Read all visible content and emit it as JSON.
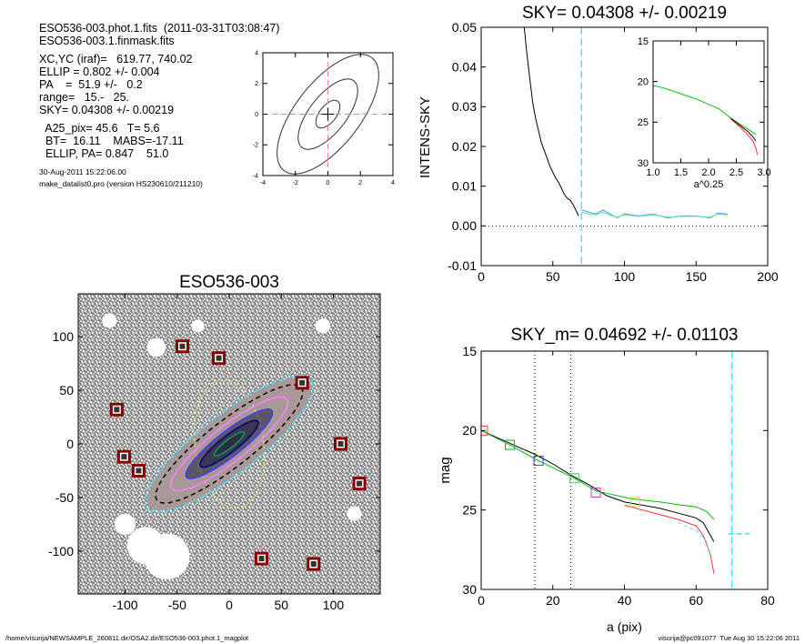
{
  "header": {
    "lines_a": [
      "ESO536-003.phot.1.fits  (2011-03-31T03:08:47)",
      "ESO536-003.1.finmask.fits"
    ],
    "lines_b": [
      "XC,YC (iraf)=   619.77, 740.02",
      "ELLIP = 0.802 +/- 0.004",
      "PA    =  51.9 +/-   0.2",
      "range=   15.-   25.",
      "SKY= 0.04308 +/- 0.00219"
    ],
    "lines_c": [
      "  A25_pix= 45.6   T= 5.6",
      "  BT=  16.11    MABS=-17.11",
      "  ELLIP, PA= 0.847    51.0"
    ],
    "date": "30-Aug-2011 15:22:06.00",
    "program": "make_datalist0.pro (version HS230610/211210)"
  },
  "footer": {
    "path": "/home/visurija/NEWSAMPLE_260811.dir/OSA2.dir/ESO536-003.phot.1_magplot",
    "stamp": "visurija@pc091077  Tue Aug 30 15:22:06 2011"
  },
  "chart_data": [
    {
      "id": "contour",
      "type": "line",
      "xlim": [
        -4,
        4
      ],
      "ylim": [
        -4,
        4
      ],
      "xticks": [
        -4,
        -2,
        0,
        2,
        4
      ],
      "yticks": [
        -4,
        -2,
        0,
        2,
        4
      ],
      "center": [
        0,
        0
      ],
      "contours": [
        {
          "a": 1.0,
          "b": 0.55,
          "angle_deg": -52
        },
        {
          "a": 2.6,
          "b": 1.2,
          "angle_deg": -52
        },
        {
          "a": 4.4,
          "b": 2.1,
          "angle_deg": -52
        }
      ],
      "crosshair_color": "#ff8080"
    },
    {
      "id": "sky",
      "type": "line",
      "title": "SKY= 0.04308 +/- 0.00219",
      "xlabel": "",
      "ylabel": "INTENS-SKY",
      "xlim": [
        0,
        200
      ],
      "ylim": [
        -0.01,
        0.05
      ],
      "xticks": [
        0,
        50,
        100,
        150,
        200
      ],
      "yticks": [
        -0.01,
        0.0,
        0.01,
        0.02,
        0.03,
        0.04,
        0.05
      ],
      "ytick_labels": [
        "-0.01",
        "0.00",
        "0.01",
        "0.02",
        "0.03",
        "0.04",
        "0.05"
      ],
      "vline": 70,
      "zero_line": 0,
      "series": [
        {
          "color": "#000000",
          "x": [
            30,
            32,
            34,
            36,
            38,
            40,
            42,
            44,
            46,
            48,
            50,
            52,
            54,
            56,
            58,
            60,
            62,
            64,
            66,
            68
          ],
          "y": [
            0.05,
            0.043,
            0.037,
            0.031,
            0.027,
            0.024,
            0.021,
            0.019,
            0.017,
            0.015,
            0.0135,
            0.012,
            0.011,
            0.0095,
            0.008,
            0.007,
            0.0065,
            0.0055,
            0.004,
            0.0025
          ]
        },
        {
          "color": "#40a0ff",
          "x": [
            70,
            75,
            80,
            85,
            90,
            95,
            100,
            110,
            120,
            130,
            140,
            150,
            160,
            165,
            172
          ],
          "y": [
            0.004,
            0.0035,
            0.003,
            0.004,
            0.003,
            0.002,
            0.003,
            0.0025,
            0.003,
            0.002,
            0.0025,
            0.0025,
            0.002,
            0.0032,
            0.003
          ]
        },
        {
          "color": "#60e0a0",
          "x": [
            70,
            75,
            80,
            85,
            90,
            95,
            100,
            110,
            120,
            130,
            140,
            150,
            160,
            165,
            172
          ],
          "y": [
            0.0035,
            0.003,
            0.0028,
            0.0034,
            0.0027,
            0.0022,
            0.0028,
            0.0024,
            0.0028,
            0.0022,
            0.0024,
            0.0024,
            0.0022,
            0.003,
            0.0028
          ]
        }
      ],
      "inset": {
        "xlabel": "a^0.25",
        "xlim": [
          1.0,
          3.0
        ],
        "ylim": [
          15,
          30
        ],
        "xticks": [
          1.0,
          1.5,
          2.0,
          2.5,
          3.0
        ],
        "xtick_labels": [
          "1.0",
          "1.5",
          "2.0",
          "2.5",
          "3.0"
        ],
        "yticks": [
          15,
          20,
          25,
          30
        ],
        "series": [
          {
            "color": "#00c000",
            "x": [
              1.0,
              1.2,
              1.5,
              1.8,
              2.0,
              2.2,
              2.4,
              2.55,
              2.7,
              2.8,
              2.85
            ],
            "y": [
              20.5,
              20.8,
              21.5,
              22.2,
              22.8,
              23.4,
              24.5,
              25.2,
              25.8,
              26.3,
              26.5
            ]
          },
          {
            "color": "#ff3030",
            "x": [
              2.4,
              2.55,
              2.7,
              2.8,
              2.85,
              2.88
            ],
            "y": [
              24.6,
              25.5,
              26.5,
              27.3,
              28.2,
              29.0
            ]
          },
          {
            "color": "#000000",
            "x": [
              2.4,
              2.55,
              2.7,
              2.8,
              2.85
            ],
            "y": [
              24.5,
              25.3,
              26.1,
              26.8,
              27.3
            ]
          }
        ]
      }
    },
    {
      "id": "image",
      "type": "scatter",
      "title": "ESO536-003",
      "xlim": [
        -145,
        145
      ],
      "ylim": [
        -140,
        140
      ],
      "xticks": [
        -100,
        -50,
        0,
        50,
        100
      ],
      "yticks": [
        -100,
        -50,
        0,
        50,
        100
      ],
      "galaxy": {
        "center": [
          0,
          0
        ],
        "angle_deg": -38,
        "contours": [
          {
            "a": 100,
            "b": 28,
            "color": "#40d8ff",
            "dash": "6,4"
          },
          {
            "a": 88,
            "b": 22,
            "color": "#000000",
            "dash": "5,4"
          },
          {
            "a": 70,
            "b": 17,
            "color": "#ff80ff",
            "dash": ""
          },
          {
            "a": 52,
            "b": 12,
            "color": "#4040ff",
            "dash": ""
          },
          {
            "a": 35,
            "b": 8,
            "color": "#000080",
            "dash": ""
          },
          {
            "a": 18,
            "b": 4,
            "color": "#00a040",
            "dash": ""
          }
        ],
        "aperture": {
          "a": 62,
          "b": 33,
          "angle_deg": 82,
          "color": "#d8e060"
        }
      },
      "masked_stars": [
        [
          -45,
          91
        ],
        [
          -10,
          80
        ],
        [
          70,
          57
        ],
        [
          -108,
          32
        ],
        [
          -101,
          -12
        ],
        [
          -87,
          -25
        ],
        [
          107,
          0
        ],
        [
          125,
          -37
        ],
        [
          31,
          -107
        ],
        [
          81,
          -112
        ]
      ],
      "holes": [
        [
          -70,
          90,
          9
        ],
        [
          -115,
          115,
          7
        ],
        [
          -60,
          -105,
          22
        ],
        [
          -80,
          -95,
          18
        ],
        [
          -100,
          -75,
          10
        ],
        [
          -30,
          110,
          6
        ],
        [
          90,
          110,
          7
        ],
        [
          120,
          -65,
          7
        ]
      ]
    },
    {
      "id": "mag",
      "type": "line",
      "title": "SKY_m=  0.04692 +/- 0.01103",
      "xlabel": "a (pix)",
      "ylabel": "mag",
      "xlim": [
        0,
        80
      ],
      "ylim": [
        15,
        30
      ],
      "xticks": [
        0,
        20,
        40,
        60,
        80
      ],
      "yticks": [
        15,
        20,
        25,
        30
      ],
      "vlines_dotted": [
        15,
        25
      ],
      "vline_cyan": 70,
      "sky_segment": {
        "x": [
          69,
          75
        ],
        "y": 26.5
      },
      "series": [
        {
          "color": "#000000",
          "x": [
            0,
            5,
            10,
            15,
            20,
            25,
            30,
            35,
            40,
            45,
            50,
            55,
            60,
            62,
            64,
            65
          ],
          "y": [
            20.0,
            20.5,
            21.0,
            21.5,
            22.1,
            22.8,
            23.4,
            24.1,
            24.5,
            24.7,
            24.9,
            25.2,
            25.5,
            25.8,
            26.6,
            27.0
          ]
        },
        {
          "color": "#00c000",
          "x": [
            0,
            8,
            16,
            26,
            32,
            42,
            50,
            56,
            60,
            63,
            65
          ],
          "y": [
            20.0,
            20.9,
            21.9,
            23.0,
            23.8,
            24.3,
            24.5,
            24.7,
            24.8,
            25.1,
            25.6
          ]
        },
        {
          "color": "#ff3030",
          "x": [
            40,
            45,
            50,
            55,
            60,
            62,
            64,
            65
          ],
          "y": [
            24.7,
            25.0,
            25.3,
            25.6,
            26.0,
            26.6,
            27.8,
            29.0
          ]
        },
        {
          "color": "#60e0ff",
          "x": [
            55,
            60,
            63,
            64
          ],
          "y": [
            25.8,
            26.3,
            27.0,
            28.0
          ]
        }
      ],
      "markers": [
        {
          "x": 0.5,
          "y": 20.0,
          "color": "#ff3030"
        },
        {
          "x": 8,
          "y": 20.9,
          "color": "#00c000"
        },
        {
          "x": 16,
          "y": 21.9,
          "color": "#4040ff"
        },
        {
          "x": 26,
          "y": 23.0,
          "color": "#60c060"
        },
        {
          "x": 32,
          "y": 23.9,
          "color": "#c040c0"
        },
        {
          "x": 43,
          "y": 24.5,
          "color": "#d0d040"
        }
      ]
    }
  ]
}
